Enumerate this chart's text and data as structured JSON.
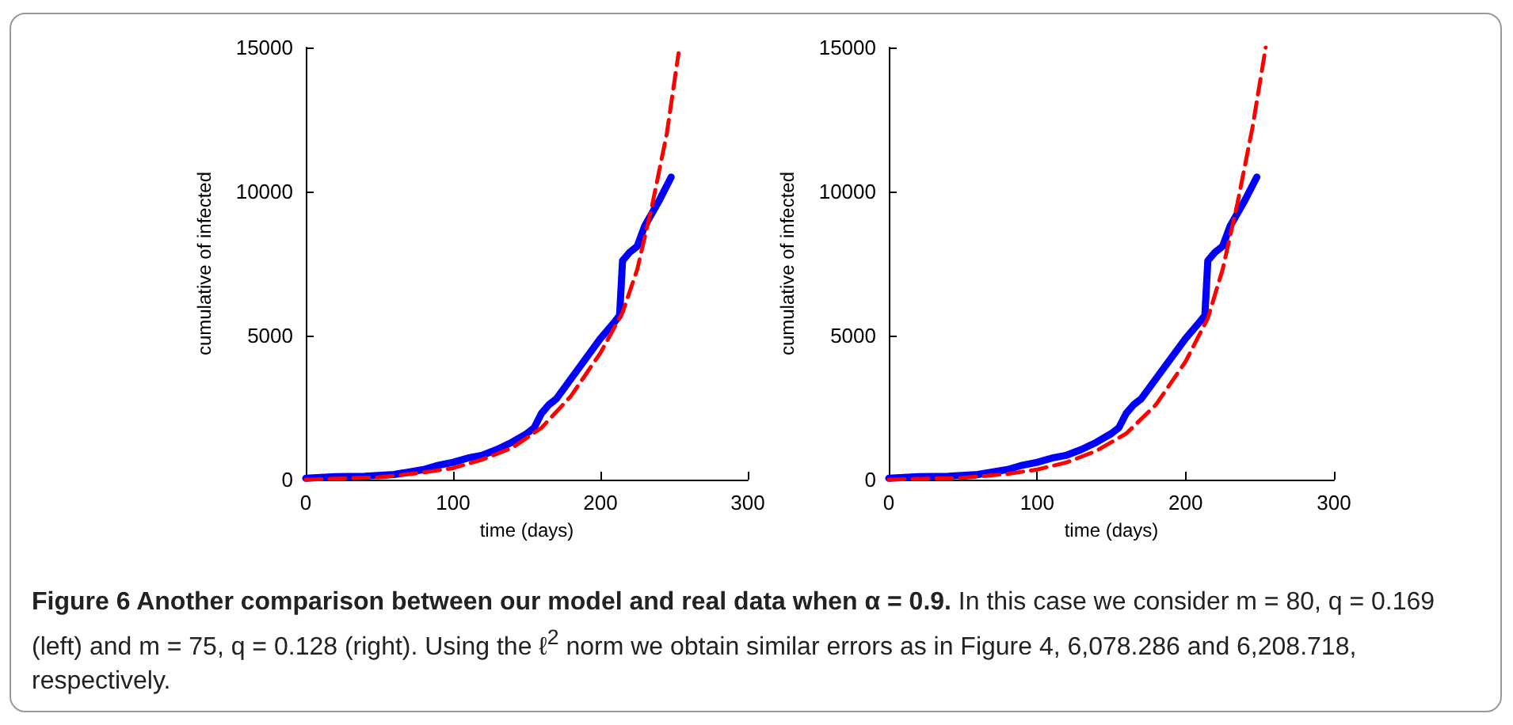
{
  "chart_data": [
    {
      "type": "line",
      "xlabel": "time (days)",
      "ylabel": "cumulative of infected",
      "xlim": [
        0,
        300
      ],
      "xticks": [
        0,
        100,
        200,
        300
      ],
      "ylim": [
        0,
        15000
      ],
      "yticks": [
        0,
        5000,
        10000,
        15000
      ],
      "grid": false,
      "marker": "none",
      "series": [
        {
          "color": "#0000ff",
          "line_style": "solid",
          "x": [
            0,
            20,
            40,
            60,
            80,
            90,
            100,
            110,
            120,
            130,
            140,
            150,
            155,
            160,
            165,
            170,
            175,
            180,
            190,
            200,
            210,
            213,
            215,
            220,
            225,
            230,
            240,
            248
          ],
          "values": [
            50,
            100,
            120,
            180,
            350,
            500,
            600,
            750,
            850,
            1050,
            1300,
            1600,
            1800,
            2300,
            2600,
            2800,
            3150,
            3500,
            4200,
            4900,
            5500,
            5700,
            7600,
            7900,
            8100,
            8800,
            9700,
            10500
          ]
        },
        {
          "color": "#ff0000",
          "line_style": "dashed",
          "x": [
            0,
            50,
            80,
            100,
            120,
            140,
            160,
            180,
            200,
            215,
            225,
            235,
            245,
            253
          ],
          "values": [
            0,
            80,
            250,
            400,
            700,
            1100,
            1800,
            2900,
            4400,
            5800,
            7300,
            9500,
            12000,
            14800
          ]
        }
      ],
      "annotations": [
        "Figure 6  Another comparison between our model and real data when α = 0.9.",
        "In this case we consider m = 80, q = 0.169 (left) and m = 75, q = 0.128 (right). Using the ℓ$^{2}$ norm we obtain similar errors as in Figure 4, 6,078.286 and 6,208.718, respectively."
      ]
    },
    {
      "type": "line",
      "xlabel": "time (days)",
      "ylabel": "cumulative of infected",
      "xlim": [
        0,
        300
      ],
      "xticks": [
        0,
        100,
        200,
        300
      ],
      "ylim": [
        0,
        15000
      ],
      "yticks": [
        0,
        5000,
        10000,
        15000
      ],
      "grid": false,
      "marker": "none",
      "series": [
        {
          "color": "#0000ff",
          "line_style": "solid",
          "x": [
            0,
            20,
            40,
            60,
            80,
            90,
            100,
            110,
            120,
            130,
            140,
            150,
            155,
            160,
            165,
            170,
            175,
            180,
            190,
            200,
            210,
            213,
            215,
            220,
            225,
            230,
            240,
            248
          ],
          "values": [
            50,
            100,
            120,
            180,
            350,
            500,
            600,
            750,
            850,
            1050,
            1300,
            1600,
            1800,
            2300,
            2600,
            2800,
            3150,
            3500,
            4200,
            4900,
            5500,
            5700,
            7600,
            7900,
            8100,
            8800,
            9700,
            10500
          ]
        },
        {
          "color": "#ff0000",
          "line_style": "dashed",
          "x": [
            0,
            50,
            80,
            100,
            120,
            140,
            160,
            180,
            200,
            215,
            225,
            235,
            245,
            254
          ],
          "values": [
            0,
            60,
            200,
            350,
            600,
            1000,
            1600,
            2600,
            4100,
            5600,
            7300,
            9600,
            12200,
            15000
          ]
        }
      ]
    }
  ]
}
